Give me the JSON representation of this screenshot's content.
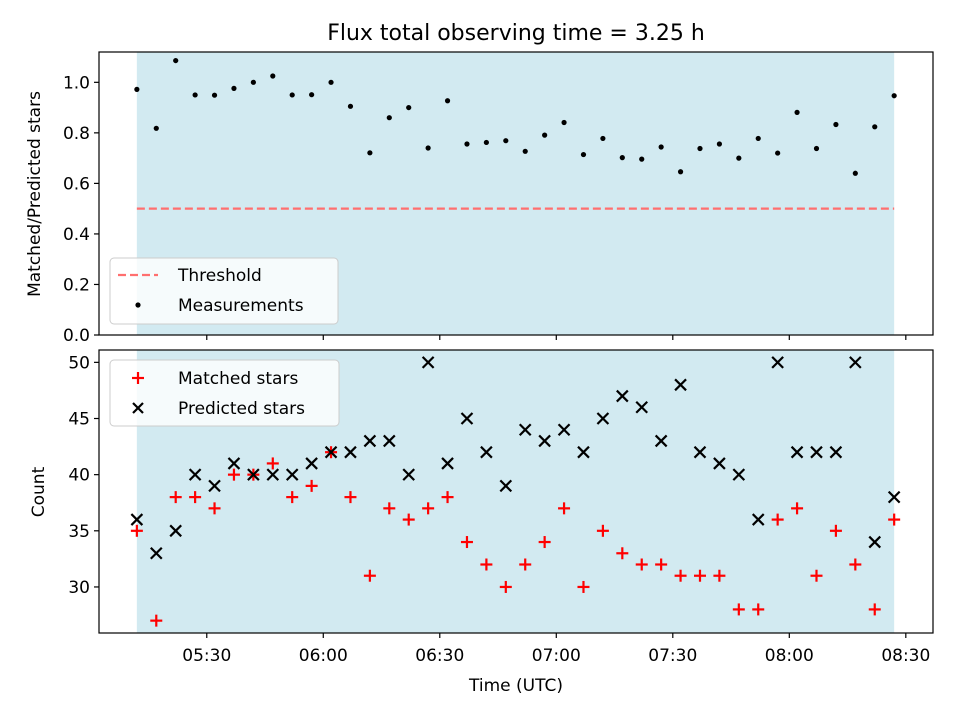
{
  "chart_data": [
    {
      "type": "scatter",
      "title": "Flux total observing time = 3.25 h",
      "ylabel": "Matched/Predicted stars",
      "xlabel": "",
      "ylim": [
        0,
        1.12
      ],
      "yticks": [
        "0.0",
        "0.2",
        "0.4",
        "0.6",
        "0.8",
        "1.0"
      ],
      "shaded_region": [
        "05:12",
        "08:27"
      ],
      "shade_color": "#add8e6",
      "threshold": {
        "name": "Threshold",
        "value": 0.5,
        "color": "#ff6f6f"
      },
      "legend": {
        "position": "lower-left",
        "entries": [
          "Threshold",
          "Measurements"
        ]
      },
      "series": [
        {
          "name": "Measurements",
          "color": "#000000",
          "x": [
            "05:12",
            "05:17",
            "05:22",
            "05:27",
            "05:32",
            "05:37",
            "05:42",
            "05:47",
            "05:52",
            "05:57",
            "06:02",
            "06:07",
            "06:12",
            "06:17",
            "06:22",
            "06:27",
            "06:32",
            "06:37",
            "06:42",
            "06:47",
            "06:52",
            "06:57",
            "07:02",
            "07:07",
            "07:12",
            "07:17",
            "07:22",
            "07:27",
            "07:32",
            "07:37",
            "07:42",
            "07:47",
            "07:52",
            "07:57",
            "08:02",
            "08:07",
            "08:12",
            "08:17",
            "08:22",
            "08:27"
          ],
          "values": [
            0.972,
            0.818,
            1.086,
            0.95,
            0.949,
            0.976,
            1.0,
            1.025,
            0.95,
            0.951,
            1.0,
            0.905,
            0.721,
            0.86,
            0.9,
            0.74,
            0.927,
            0.756,
            0.762,
            0.769,
            0.727,
            0.791,
            0.841,
            0.714,
            0.778,
            0.702,
            0.696,
            0.744,
            0.646,
            0.738,
            0.756,
            0.7,
            0.778,
            0.72,
            0.881,
            0.738,
            0.833,
            0.64,
            0.824,
            0.947
          ]
        }
      ]
    },
    {
      "type": "scatter",
      "title": "",
      "ylabel": "Count",
      "xlabel": "Time (UTC)",
      "ylim": [
        25.9,
        51.1
      ],
      "yticks": [
        "30",
        "35",
        "40",
        "45",
        "50"
      ],
      "xticks": [
        "05:30",
        "06:00",
        "06:30",
        "07:00",
        "07:30",
        "08:00",
        "08:30"
      ],
      "legend": {
        "position": "upper-left",
        "entries": [
          "Matched stars",
          "Predicted stars"
        ]
      },
      "series": [
        {
          "name": "Matched stars",
          "marker": "plus",
          "color": "#ff0000",
          "x": [
            "05:12",
            "05:17",
            "05:22",
            "05:27",
            "05:32",
            "05:37",
            "05:42",
            "05:47",
            "05:52",
            "05:57",
            "06:02",
            "06:07",
            "06:12",
            "06:17",
            "06:22",
            "06:27",
            "06:32",
            "06:37",
            "06:42",
            "06:47",
            "06:52",
            "06:57",
            "07:02",
            "07:07",
            "07:12",
            "07:17",
            "07:22",
            "07:27",
            "07:32",
            "07:37",
            "07:42",
            "07:47",
            "07:52",
            "07:57",
            "08:02",
            "08:07",
            "08:12",
            "08:17",
            "08:22",
            "08:27"
          ],
          "values": [
            35,
            27,
            38,
            38,
            37,
            40,
            40,
            41,
            38,
            39,
            42,
            38,
            31,
            37,
            36,
            37,
            38,
            34,
            32,
            30,
            32,
            34,
            37,
            30,
            35,
            33,
            32,
            32,
            31,
            31,
            31,
            28,
            28,
            36,
            37,
            31,
            35,
            32,
            28,
            36
          ]
        },
        {
          "name": "Predicted stars",
          "marker": "x",
          "color": "#000000",
          "x": [
            "05:12",
            "05:17",
            "05:22",
            "05:27",
            "05:32",
            "05:37",
            "05:42",
            "05:47",
            "05:52",
            "05:57",
            "06:02",
            "06:07",
            "06:12",
            "06:17",
            "06:22",
            "06:27",
            "06:32",
            "06:37",
            "06:42",
            "06:47",
            "06:52",
            "06:57",
            "07:02",
            "07:07",
            "07:12",
            "07:17",
            "07:22",
            "07:27",
            "07:32",
            "07:37",
            "07:42",
            "07:47",
            "07:52",
            "07:57",
            "08:02",
            "08:07",
            "08:12",
            "08:17",
            "08:22",
            "08:27"
          ],
          "values": [
            36,
            33,
            35,
            40,
            39,
            41,
            40,
            40,
            40,
            41,
            42,
            42,
            43,
            43,
            40,
            50,
            41,
            45,
            42,
            39,
            44,
            43,
            44,
            42,
            45,
            47,
            46,
            43,
            48,
            42,
            41,
            40,
            36,
            50,
            42,
            42,
            42,
            50,
            34,
            38
          ]
        }
      ]
    }
  ]
}
